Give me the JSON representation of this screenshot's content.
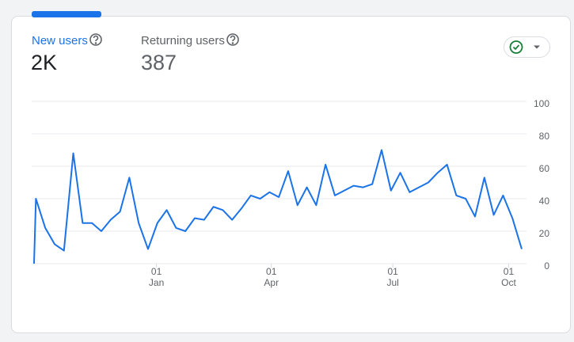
{
  "metrics": [
    {
      "label": "New users",
      "value": "2K"
    },
    {
      "label": "Returning users",
      "value": "387"
    }
  ],
  "chart_data": {
    "type": "line",
    "x": [
      0,
      0.2,
      1.2,
      2.2,
      3.2,
      4.2,
      5.2,
      6.2,
      7.2,
      8.2,
      9.2,
      10.2,
      11.2,
      12.2,
      13.2,
      14.2,
      15.2,
      16.2,
      17.2,
      18.2,
      19.2,
      20.2,
      21.2,
      22.2,
      23.2,
      24.2,
      25.2,
      26.2,
      27.2,
      28.2,
      29.2,
      30.2,
      31.2,
      32.2,
      33.2,
      34.2,
      35.2,
      36.2,
      37.2,
      38.2,
      39.2,
      40.2,
      41.2,
      42.2,
      43.2,
      44.2,
      45.2,
      46.2,
      47.2,
      48.2,
      49.2,
      50.2,
      51.2,
      52.2
    ],
    "series": [
      {
        "name": "New users",
        "color": "#1a73e8",
        "values": [
          0,
          40,
          22,
          12,
          8,
          68,
          25,
          25,
          20,
          27,
          32,
          53,
          25,
          9,
          25,
          33,
          22,
          20,
          28,
          27,
          35,
          33,
          27,
          34,
          42,
          40,
          44,
          41,
          57,
          36,
          47,
          36,
          61,
          42,
          45,
          48,
          47,
          49,
          70,
          45,
          56,
          44,
          47,
          50,
          56,
          61,
          42,
          40,
          29,
          53,
          30,
          42,
          28,
          9
        ]
      }
    ],
    "xlim": [
      0,
      52.2
    ],
    "xticks": [
      {
        "value": 13.1,
        "label": "01 Jan"
      },
      {
        "value": 25.4,
        "label": "01 Apr"
      },
      {
        "value": 38.4,
        "label": "01 Jul"
      },
      {
        "value": 50.8,
        "label": "01 Oct"
      }
    ],
    "ylim": [
      0,
      100
    ],
    "yticks": [
      0,
      20,
      40,
      60,
      80,
      100
    ],
    "grid": true
  }
}
